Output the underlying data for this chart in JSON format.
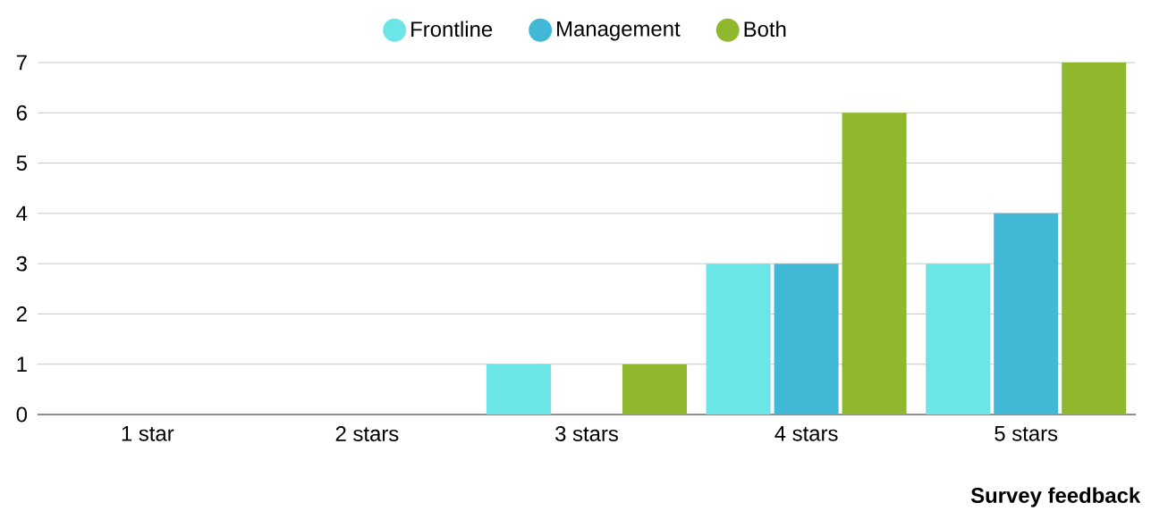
{
  "chart_data": {
    "type": "bar",
    "xlabel": "Survey feedback",
    "categories": [
      "1 star",
      "2 stars",
      "3 stars",
      "4 stars",
      "5 stars"
    ],
    "series": [
      {
        "name": "Frontline",
        "color": "#6ce5e8",
        "values": [
          0,
          0,
          1,
          3,
          3
        ]
      },
      {
        "name": "Management",
        "color": "#41b8d5",
        "values": [
          0,
          0,
          0,
          3,
          4
        ]
      },
      {
        "name": "Both",
        "color": "#8fb82e",
        "values": [
          0,
          0,
          1,
          6,
          7
        ]
      }
    ],
    "ylim": [
      0,
      7
    ],
    "yticks": [
      0,
      1,
      2,
      3,
      4,
      5,
      6,
      7
    ],
    "grid": "y",
    "legend": "top"
  }
}
